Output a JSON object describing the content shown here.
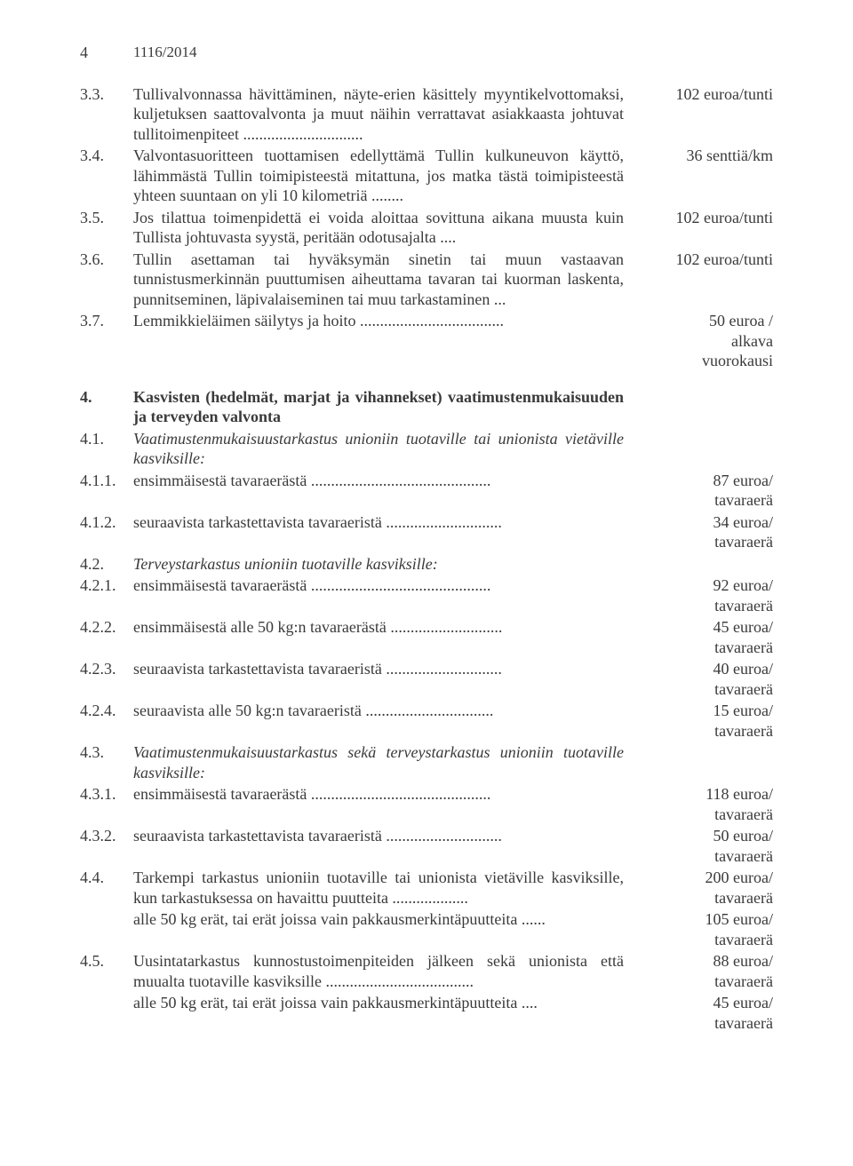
{
  "header": {
    "pageNumber": "4",
    "regulation": "1116/2014"
  },
  "rows": [
    {
      "num": "3.3.",
      "text": "Tullivalvonnassa hävittäminen, näyte-erien käsittely myyntikelvottomaksi, kuljetuksen saattovalvonta ja muut näihin verrattavat asiakkaasta johtuvat tullitoimenpiteet ..............................",
      "price": "102 euroa/tunti"
    },
    {
      "num": "3.4.",
      "text": "Valvontasuoritteen tuottamisen edellyttämä Tullin kulkuneuvon käyttö, lähimmästä Tullin toimipisteestä mitattuna, jos matka tästä toimipisteestä yhteen suuntaan on yli 10 kilometriä ........",
      "price": "36 senttiä/km"
    },
    {
      "num": "3.5.",
      "text": "Jos tilattua toimenpidettä ei voida aloittaa sovittuna aikana muusta kuin Tullista johtuvasta syystä, peritään odotusajalta ....",
      "price": "102 euroa/tunti"
    },
    {
      "num": "3.6.",
      "text": "Tullin asettaman tai hyväksymän sinetin tai muun vastaavan tunnistusmerkinnän puuttumisen aiheuttama tavaran tai kuorman laskenta, punnitseminen, läpivalaiseminen tai muu tarkastaminen ...",
      "price": "102 euroa/tunti"
    },
    {
      "num": "3.7.",
      "text": "Lemmikkieläimen säilytys ja hoito ....................................",
      "price": "50 euroa / alkava vuorokausi"
    },
    {
      "num": "4.",
      "text": "Kasvisten (hedelmät, marjat ja vihannekset) vaatimustenmukaisuuden ja terveyden valvonta",
      "price": "",
      "bold": true,
      "gap": true
    },
    {
      "num": "4.1.",
      "text": "Vaatimustenmukaisuustarkastus unioniin tuotaville tai unionista vietäville kasviksille:",
      "price": "",
      "italic": true
    },
    {
      "num": "4.1.1.",
      "text": "ensimmäisestä tavaraerästä .............................................",
      "price": "87 euroa/ tavaraerä"
    },
    {
      "num": "4.1.2.",
      "text": "seuraavista tarkastettavista tavaraeristä .............................",
      "price": "34 euroa/ tavaraerä"
    },
    {
      "num": "4.2.",
      "text": "Terveystarkastus unioniin tuotaville kasviksille:",
      "price": "",
      "italic": true
    },
    {
      "num": "4.2.1.",
      "text": "ensimmäisestä tavaraerästä .............................................",
      "price": "92 euroa/ tavaraerä"
    },
    {
      "num": "4.2.2.",
      "text": "ensimmäisestä alle 50 kg:n tavaraerästä ............................",
      "price": "45 euroa/ tavaraerä"
    },
    {
      "num": "4.2.3.",
      "text": "seuraavista tarkastettavista tavaraeristä .............................",
      "price": "40 euroa/ tavaraerä"
    },
    {
      "num": "4.2.4.",
      "text": " seuraavista alle 50 kg:n tavaraeristä ................................",
      "price": "15 euroa/ tavaraerä"
    },
    {
      "num": "4.3.",
      "text": "Vaatimustenmukaisuustarkastus sekä terveystarkastus unioniin tuotaville kasviksille:",
      "price": "",
      "italic": true
    },
    {
      "num": "4.3.1.",
      "text": "ensimmäisestä tavaraerästä .............................................",
      "price": "118 euroa/ tavaraerä"
    },
    {
      "num": "4.3.2.",
      "text": "seuraavista tarkastettavista tavaraeristä .............................",
      "price": "50 euroa/ tavaraerä"
    },
    {
      "num": "4.4.",
      "text": "Tarkempi tarkastus unioniin tuotaville tai unionista vietäville kasviksille, kun tarkastuksessa on havaittu puutteita ...................",
      "price": "200 euroa/ tavaraerä"
    },
    {
      "num": "",
      "text": "alle 50 kg erät, tai erät joissa vain pakkausmerkintäpuutteita ......",
      "price": "105 euroa/ tavaraerä"
    },
    {
      "num": "4.5.",
      "text": "Uusintatarkastus kunnostustoimenpiteiden jälkeen sekä unionista että muualta tuotaville kasviksille .....................................",
      "price": "88 euroa/ tavaraerä"
    },
    {
      "num": "",
      "text": "alle 50 kg erät, tai erät joissa vain pakkausmerkintäpuutteita ....",
      "price": "45 euroa/ tavaraerä"
    }
  ]
}
